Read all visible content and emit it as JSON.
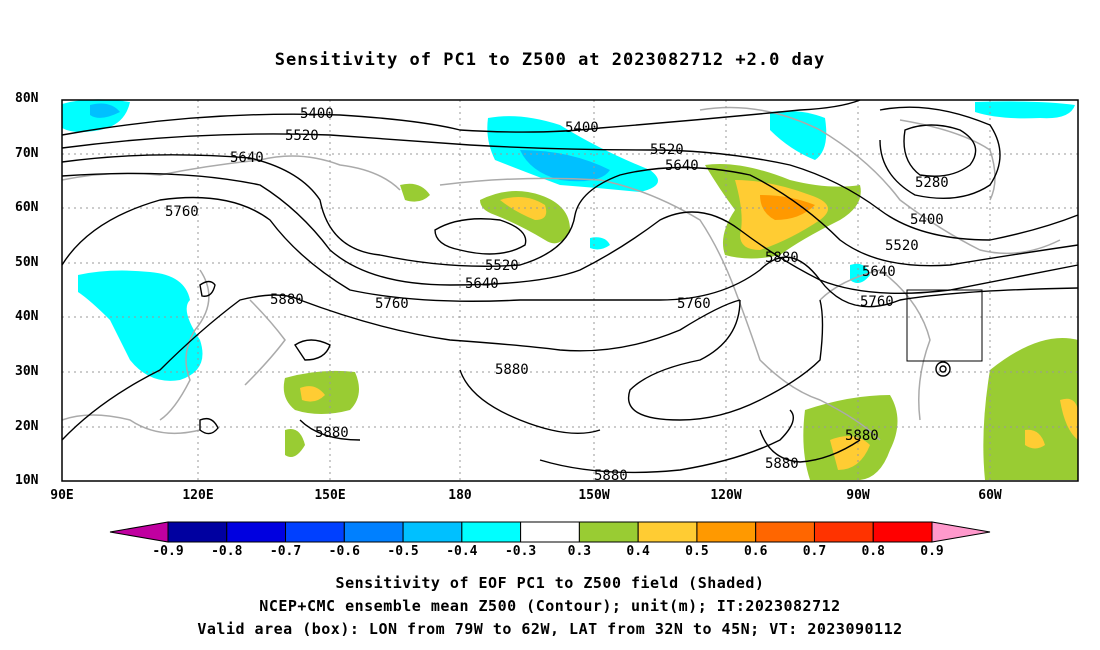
{
  "title": "Sensitivity of PC1 to Z500 at 2023082712 +2.0 day",
  "lat_labels": [
    "80N",
    "70N",
    "60N",
    "50N",
    "40N",
    "30N",
    "20N",
    "10N"
  ],
  "lon_labels": [
    "90E",
    "120E",
    "150E",
    "180",
    "150W",
    "120W",
    "90W",
    "60W"
  ],
  "contour_labels": [
    {
      "text": "5400"
    },
    {
      "text": "5520"
    },
    {
      "text": "5640"
    },
    {
      "text": "5760"
    },
    {
      "text": "5880"
    },
    {
      "text": "5400"
    },
    {
      "text": "5520"
    },
    {
      "text": "5640"
    },
    {
      "text": "5520"
    },
    {
      "text": "5640"
    },
    {
      "text": "5760"
    },
    {
      "text": "5880"
    },
    {
      "text": "5760"
    },
    {
      "text": "5880"
    },
    {
      "text": "5880"
    },
    {
      "text": "5880"
    },
    {
      "text": "5880"
    },
    {
      "text": "5880"
    },
    {
      "text": "5280"
    },
    {
      "text": "5400"
    },
    {
      "text": "5520"
    },
    {
      "text": "5640"
    },
    {
      "text": "5760"
    }
  ],
  "colorbar": {
    "colors": [
      "#c000a0",
      "#0000a0",
      "#0000e0",
      "#0040ff",
      "#0080ff",
      "#00c0ff",
      "#00ffff",
      "#ffffff",
      "#99cc33",
      "#ffcc33",
      "#ff9900",
      "#ff6600",
      "#ff3300",
      "#ff0000",
      "#ff99cc"
    ],
    "labels": [
      "-0.9",
      "-0.8",
      "-0.7",
      "-0.6",
      "-0.5",
      "-0.4",
      "-0.3",
      "0.3",
      "0.4",
      "0.5",
      "0.6",
      "0.7",
      "0.8",
      "0.9"
    ]
  },
  "captions": [
    "Sensitivity of EOF PC1 to Z500 field (Shaded)",
    "NCEP+CMC ensemble mean Z500 (Contour); unit(m); IT:2023082712",
    "Valid area (box): LON from 79W to 62W, LAT from 32N to 45N; VT: 2023090112"
  ]
}
